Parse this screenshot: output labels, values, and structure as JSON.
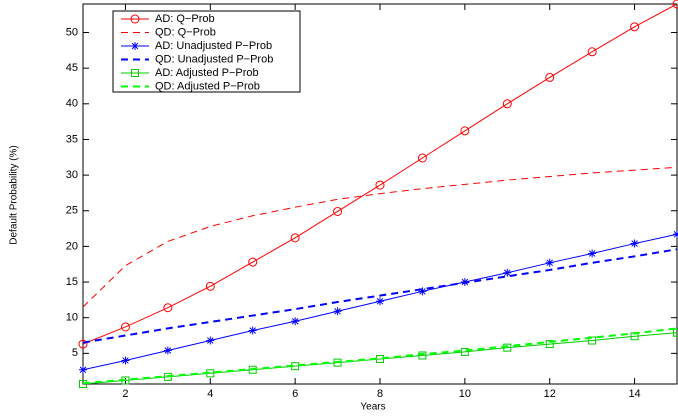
{
  "chart_data": {
    "type": "line",
    "x_label": "Years",
    "y_label": "Default Probability (%)",
    "x": [
      1,
      2,
      3,
      4,
      5,
      6,
      7,
      8,
      9,
      10,
      11,
      12,
      13,
      14,
      15
    ],
    "xlim": [
      1,
      15
    ],
    "xticks": [
      2,
      4,
      6,
      8,
      10,
      12,
      14
    ],
    "ylim": [
      0.7,
      54
    ],
    "yticks": [
      5,
      10,
      15,
      20,
      25,
      30,
      35,
      40,
      45,
      50
    ],
    "grid": false,
    "legend": "upper-left",
    "series": [
      {
        "name": "AD: Q−Prob",
        "color": "#ff0000",
        "dash": "solid",
        "marker": "circle",
        "values": [
          6.3,
          8.7,
          11.4,
          14.4,
          17.8,
          21.2,
          24.9,
          28.6,
          32.4,
          36.2,
          40.0,
          43.7,
          47.3,
          50.8,
          54.0
        ]
      },
      {
        "name": "QD: Q−Prob",
        "color": "#ff0000",
        "dash": "dashed",
        "marker": "none",
        "values": [
          11.5,
          17.3,
          20.7,
          22.8,
          24.3,
          25.5,
          26.6,
          27.4,
          28.1,
          28.7,
          29.3,
          29.8,
          30.3,
          30.7,
          31.1
        ]
      },
      {
        "name": "AD: Unadjusted P−Prob",
        "color": "#0000ff",
        "dash": "solid",
        "marker": "star",
        "values": [
          2.7,
          4.0,
          5.4,
          6.8,
          8.2,
          9.5,
          10.9,
          12.3,
          13.7,
          15.0,
          16.3,
          17.7,
          19.0,
          20.4,
          21.7
        ]
      },
      {
        "name": "QD: Unadjusted P−Prob",
        "color": "#0000ff",
        "dash": "dashed",
        "marker": "none",
        "values": [
          6.5,
          7.5,
          8.5,
          9.4,
          10.3,
          11.2,
          12.2,
          13.1,
          14.0,
          14.9,
          15.8,
          16.7,
          17.7,
          18.6,
          19.6
        ]
      },
      {
        "name": "AD: Adjusted P−Prob",
        "color": "#00cc00",
        "dash": "solid",
        "marker": "square",
        "values": [
          0.7,
          1.2,
          1.7,
          2.2,
          2.7,
          3.2,
          3.7,
          4.2,
          4.7,
          5.2,
          5.8,
          6.3,
          6.8,
          7.4,
          7.9
        ]
      },
      {
        "name": "QD: Adjusted P−Prob",
        "color": "#00ff00",
        "dash": "dashed",
        "marker": "none",
        "values": [
          0.8,
          1.3,
          1.8,
          2.3,
          2.8,
          3.3,
          3.8,
          4.3,
          4.9,
          5.4,
          6.0,
          6.6,
          7.2,
          7.8,
          8.5
        ]
      }
    ]
  }
}
